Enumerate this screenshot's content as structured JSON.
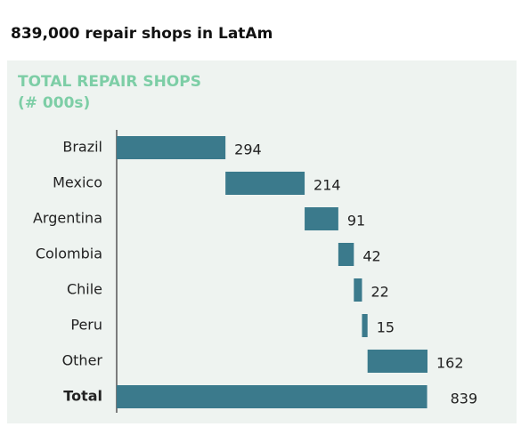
{
  "title": "839,000 repair shops in LatAm",
  "chart_data": {
    "type": "waterfall",
    "title": "TOTAL REPAIR SHOPS",
    "subtitle": "(# 000s)",
    "categories": [
      "Brazil",
      "Mexico",
      "Argentina",
      "Colombia",
      "Chile",
      "Peru",
      "Other",
      "Total"
    ],
    "values": [
      294,
      214,
      91,
      42,
      22,
      15,
      162,
      839
    ],
    "color": "#3b7a8c"
  }
}
